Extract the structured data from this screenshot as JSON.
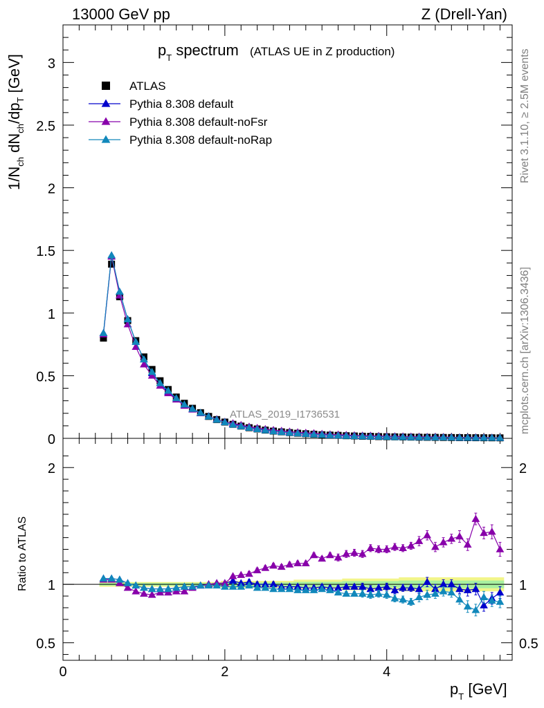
{
  "header": {
    "left": "13000 GeV pp",
    "right": "Z (Drell-Yan)"
  },
  "title": {
    "main_p": "p",
    "main_sub": "T",
    "main_rest": " spectrum",
    "sub": "(ATLAS UE in Z production)"
  },
  "side_labels": {
    "rivet": "Rivet 3.1.10, ≥ 2.5M events",
    "mcplots": "mcplots.cern.ch [arXiv:1306.3436]"
  },
  "watermark": "ATLAS_2019_I1736531",
  "chart_data": [
    {
      "type": "scatter",
      "panel": "main",
      "ylabel": "1/N_ch dN_ch/dp_T [GeV]",
      "ylim": [
        0,
        3.3
      ],
      "xlim": [
        0,
        5.55
      ],
      "y_ticks": [
        "0",
        "0.5",
        "1",
        "1.5",
        "2",
        "2.5",
        "3"
      ],
      "legend_position": "top-left",
      "x": [
        0.5,
        0.6,
        0.7,
        0.8,
        0.9,
        1.0,
        1.1,
        1.2,
        1.3,
        1.4,
        1.5,
        1.6,
        1.7,
        1.8,
        1.9,
        2.0,
        2.1,
        2.2,
        2.3,
        2.4,
        2.5,
        2.6,
        2.7,
        2.8,
        2.9,
        3.0,
        3.1,
        3.2,
        3.3,
        3.4,
        3.5,
        3.6,
        3.7,
        3.8,
        3.9,
        4.0,
        4.1,
        4.2,
        4.3,
        4.4,
        4.5,
        4.6,
        4.7,
        4.8,
        4.9,
        5.0,
        5.1,
        5.2,
        5.3,
        5.4
      ],
      "series": [
        {
          "name": "ATLAS",
          "color": "#000000",
          "marker": "square",
          "values": [
            0.8,
            1.39,
            1.13,
            0.94,
            0.78,
            0.65,
            0.55,
            0.46,
            0.39,
            0.33,
            0.28,
            0.24,
            0.205,
            0.175,
            0.15,
            0.13,
            0.112,
            0.098,
            0.085,
            0.075,
            0.066,
            0.058,
            0.052,
            0.046,
            0.041,
            0.037,
            0.033,
            0.029,
            0.026,
            0.024,
            0.021,
            0.019,
            0.017,
            0.016,
            0.014,
            0.013,
            0.012,
            0.011,
            0.01,
            0.009,
            0.0085,
            0.0078,
            0.0072,
            0.0066,
            0.006,
            0.0056,
            0.0051,
            0.0047,
            0.0044,
            0.004
          ]
        },
        {
          "name": "Pythia 8.308 default",
          "color": "#0000cc",
          "marker": "triangle",
          "values": [
            0.84,
            1.46,
            1.17,
            0.95,
            0.77,
            0.63,
            0.52,
            0.44,
            0.37,
            0.32,
            0.27,
            0.235,
            0.203,
            0.175,
            0.151,
            0.131,
            0.115,
            0.099,
            0.087,
            0.075,
            0.066,
            0.058,
            0.051,
            0.045,
            0.04,
            0.036,
            0.032,
            0.029,
            0.025,
            0.023,
            0.021,
            0.019,
            0.017,
            0.015,
            0.014,
            0.013,
            0.012,
            0.011,
            0.01,
            0.009,
            0.0087,
            0.0075,
            0.0072,
            0.0066,
            0.0058,
            0.0053,
            0.0049,
            0.0039,
            0.0039,
            0.0037
          ]
        },
        {
          "name": "Pythia 8.308 default-noFsr",
          "color": "#8800aa",
          "marker": "triangle",
          "values": [
            0.83,
            1.45,
            1.14,
            0.91,
            0.73,
            0.59,
            0.5,
            0.42,
            0.36,
            0.31,
            0.26,
            0.23,
            0.2,
            0.175,
            0.152,
            0.131,
            0.12,
            0.106,
            0.093,
            0.083,
            0.074,
            0.066,
            0.06,
            0.054,
            0.048,
            0.044,
            0.041,
            0.036,
            0.032,
            0.03,
            0.027,
            0.024,
            0.022,
            0.021,
            0.019,
            0.017,
            0.016,
            0.015,
            0.014,
            0.013,
            0.012,
            0.0115,
            0.011,
            0.0095,
            0.0085,
            0.0078,
            0.0082,
            0.0068,
            0.0064,
            0.0052
          ]
        },
        {
          "name": "Pythia 8.308 default-noRap",
          "color": "#1188bb",
          "marker": "triangle",
          "values": [
            0.84,
            1.46,
            1.17,
            0.95,
            0.77,
            0.63,
            0.53,
            0.44,
            0.38,
            0.32,
            0.27,
            0.235,
            0.203,
            0.174,
            0.148,
            0.128,
            0.11,
            0.096,
            0.084,
            0.073,
            0.064,
            0.056,
            0.05,
            0.044,
            0.039,
            0.035,
            0.031,
            0.028,
            0.025,
            0.022,
            0.019,
            0.017,
            0.016,
            0.014,
            0.013,
            0.012,
            0.01,
            0.0095,
            0.0085,
            0.008,
            0.0078,
            0.0072,
            0.0068,
            0.0061,
            0.0052,
            0.0045,
            0.0045,
            0.0041,
            0.0038,
            0.0034
          ]
        }
      ]
    },
    {
      "type": "scatter",
      "panel": "ratio",
      "ylabel": "Ratio to ATLAS",
      "xlabel": "p_T [GeV]",
      "ylim": [
        0.35,
        2.25
      ],
      "xlim": [
        0,
        5.55
      ],
      "y_ticks": [
        "0.5",
        "1",
        "2"
      ],
      "x_ticks": [
        "0",
        "2",
        "4"
      ],
      "x": [
        0.5,
        0.6,
        0.7,
        0.8,
        0.9,
        1.0,
        1.1,
        1.2,
        1.3,
        1.4,
        1.5,
        1.6,
        1.7,
        1.8,
        1.9,
        2.0,
        2.1,
        2.2,
        2.3,
        2.4,
        2.5,
        2.6,
        2.7,
        2.8,
        2.9,
        3.0,
        3.1,
        3.2,
        3.3,
        3.4,
        3.5,
        3.6,
        3.7,
        3.8,
        3.9,
        4.0,
        4.1,
        4.2,
        4.3,
        4.4,
        4.5,
        4.6,
        4.7,
        4.8,
        4.9,
        5.0,
        5.1,
        5.2,
        5.3,
        5.4
      ],
      "band_upper": [
        1.02,
        1.02,
        1.02,
        1.02,
        1.02,
        1.02,
        1.02,
        1.02,
        1.02,
        1.02,
        1.02,
        1.02,
        1.02,
        1.02,
        1.02,
        1.03,
        1.03,
        1.03,
        1.03,
        1.03,
        1.03,
        1.03,
        1.03,
        1.03,
        1.04,
        1.04,
        1.04,
        1.04,
        1.04,
        1.04,
        1.05,
        1.05,
        1.05,
        1.05,
        1.05,
        1.05,
        1.05,
        1.06,
        1.06,
        1.06,
        1.06,
        1.06,
        1.06,
        1.06,
        1.06,
        1.06,
        1.06,
        1.06,
        1.06,
        1.06
      ],
      "band_lower": [
        0.98,
        0.98,
        0.98,
        0.98,
        0.98,
        0.98,
        0.98,
        0.98,
        0.98,
        0.98,
        0.98,
        0.98,
        0.98,
        0.98,
        0.98,
        0.97,
        0.97,
        0.97,
        0.97,
        0.97,
        0.97,
        0.97,
        0.97,
        0.97,
        0.96,
        0.96,
        0.96,
        0.96,
        0.96,
        0.96,
        0.95,
        0.95,
        0.95,
        0.95,
        0.95,
        0.95,
        0.95,
        0.94,
        0.94,
        0.94,
        0.94,
        0.94,
        0.94,
        0.94,
        0.94,
        0.94,
        0.94,
        0.94,
        0.94,
        0.94
      ],
      "series": [
        {
          "name": "Pythia 8.308 default",
          "color": "#0000cc",
          "values": [
            1.05,
            1.05,
            1.04,
            1.01,
            0.99,
            0.97,
            0.96,
            0.96,
            0.96,
            0.97,
            0.98,
            0.98,
            0.99,
            1.0,
            1.01,
            1.01,
            1.03,
            1.01,
            1.02,
            1.0,
            1.0,
            1.0,
            0.98,
            0.98,
            0.98,
            0.97,
            0.97,
            0.98,
            0.97,
            0.97,
            0.98,
            0.98,
            0.98,
            0.96,
            0.97,
            0.98,
            0.95,
            0.97,
            0.97,
            0.96,
            1.02,
            0.96,
            1.0,
            1.0,
            0.96,
            0.95,
            0.96,
            0.82,
            0.88,
            0.93
          ],
          "errors": [
            0.01,
            0.01,
            0.01,
            0.01,
            0.01,
            0.01,
            0.01,
            0.01,
            0.01,
            0.01,
            0.01,
            0.01,
            0.01,
            0.01,
            0.01,
            0.01,
            0.01,
            0.01,
            0.02,
            0.02,
            0.02,
            0.02,
            0.02,
            0.02,
            0.02,
            0.02,
            0.02,
            0.02,
            0.02,
            0.02,
            0.02,
            0.02,
            0.03,
            0.03,
            0.03,
            0.03,
            0.03,
            0.03,
            0.03,
            0.04,
            0.04,
            0.04,
            0.04,
            0.04,
            0.04,
            0.05,
            0.05,
            0.05,
            0.05,
            0.05
          ]
        },
        {
          "name": "Pythia 8.308 default-noFsr",
          "color": "#8800aa",
          "values": [
            1.04,
            1.04,
            1.01,
            0.97,
            0.94,
            0.92,
            0.91,
            0.93,
            0.93,
            0.94,
            0.94,
            0.97,
            0.99,
            1.0,
            1.01,
            1.01,
            1.07,
            1.08,
            1.09,
            1.12,
            1.14,
            1.16,
            1.15,
            1.17,
            1.18,
            1.18,
            1.25,
            1.22,
            1.25,
            1.23,
            1.26,
            1.27,
            1.26,
            1.31,
            1.3,
            1.3,
            1.32,
            1.31,
            1.33,
            1.37,
            1.42,
            1.32,
            1.36,
            1.39,
            1.41,
            1.34,
            1.56,
            1.44,
            1.45,
            1.3
          ],
          "errors": [
            0.01,
            0.01,
            0.01,
            0.01,
            0.01,
            0.01,
            0.01,
            0.01,
            0.01,
            0.01,
            0.01,
            0.01,
            0.01,
            0.01,
            0.01,
            0.01,
            0.01,
            0.01,
            0.02,
            0.02,
            0.02,
            0.02,
            0.02,
            0.02,
            0.02,
            0.02,
            0.02,
            0.02,
            0.02,
            0.03,
            0.03,
            0.03,
            0.03,
            0.03,
            0.03,
            0.03,
            0.03,
            0.03,
            0.03,
            0.04,
            0.04,
            0.04,
            0.04,
            0.04,
            0.05,
            0.05,
            0.05,
            0.05,
            0.06,
            0.06
          ]
        },
        {
          "name": "Pythia 8.308 default-noRap",
          "color": "#1188bb",
          "values": [
            1.05,
            1.05,
            1.04,
            1.01,
            0.99,
            0.97,
            0.96,
            0.96,
            0.96,
            0.97,
            0.98,
            0.98,
            0.99,
            0.99,
            0.99,
            0.98,
            0.98,
            0.98,
            0.99,
            0.97,
            0.97,
            0.96,
            0.96,
            0.96,
            0.95,
            0.95,
            0.95,
            0.96,
            0.95,
            0.93,
            0.92,
            0.92,
            0.92,
            0.91,
            0.92,
            0.91,
            0.88,
            0.87,
            0.85,
            0.89,
            0.91,
            0.92,
            0.94,
            0.93,
            0.87,
            0.81,
            0.78,
            0.89,
            0.86,
            0.85
          ],
          "errors": [
            0.01,
            0.01,
            0.01,
            0.01,
            0.01,
            0.01,
            0.01,
            0.01,
            0.01,
            0.01,
            0.01,
            0.01,
            0.01,
            0.01,
            0.01,
            0.01,
            0.01,
            0.01,
            0.02,
            0.02,
            0.02,
            0.02,
            0.02,
            0.02,
            0.02,
            0.02,
            0.02,
            0.02,
            0.02,
            0.02,
            0.02,
            0.02,
            0.03,
            0.03,
            0.03,
            0.03,
            0.03,
            0.03,
            0.03,
            0.04,
            0.04,
            0.04,
            0.04,
            0.04,
            0.04,
            0.05,
            0.05,
            0.05,
            0.05,
            0.05
          ]
        }
      ]
    }
  ]
}
